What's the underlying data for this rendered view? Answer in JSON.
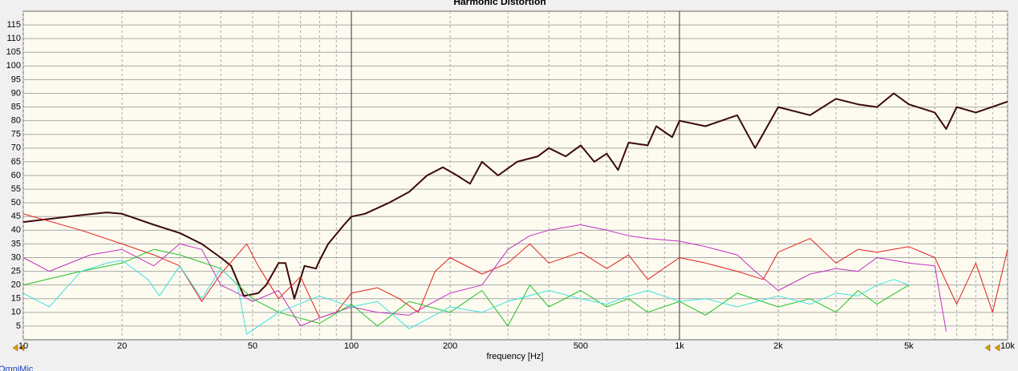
{
  "chart_data": {
    "type": "line",
    "title": "Harmonic Distortion",
    "xlabel": "frequency [Hz]",
    "footer": "OmniMic",
    "xscale": "log",
    "xlim": [
      10,
      10000
    ],
    "ylim": [
      0,
      120
    ],
    "xticks": [
      10,
      20,
      50,
      100,
      200,
      500,
      {
        "value": 1000,
        "label": "1k"
      },
      {
        "value": 2000,
        "label": "2k"
      },
      {
        "value": 5000,
        "label": "5k"
      },
      {
        "value": 10000,
        "label": "10k"
      }
    ],
    "xminor_ticks": [
      30,
      40,
      60,
      70,
      80,
      90,
      300,
      400,
      600,
      700,
      800,
      900,
      3000,
      4000,
      6000,
      7000,
      8000,
      9000
    ],
    "xmajor_lines": [
      100,
      1000
    ],
    "yticks": [
      5,
      10,
      15,
      20,
      25,
      30,
      35,
      40,
      45,
      50,
      55,
      60,
      65,
      70,
      75,
      80,
      85,
      90,
      95,
      100,
      105,
      110,
      115
    ],
    "grid": true,
    "series": [
      {
        "color": "#3c0a0a",
        "width": 2,
        "x": [
          10,
          15,
          18,
          20,
          25,
          30,
          35,
          40,
          43,
          47,
          52,
          55,
          60,
          63,
          67,
          72,
          78,
          80,
          85,
          95,
          100,
          110,
          130,
          150,
          170,
          190,
          210,
          230,
          250,
          280,
          320,
          370,
          400,
          450,
          500,
          550,
          600,
          650,
          700,
          800,
          850,
          950,
          1000,
          1200,
          1500,
          1700,
          2000,
          2500,
          3000,
          3500,
          4000,
          4500,
          5000,
          6000,
          6500,
          7000,
          8000,
          10000
        ],
        "values": [
          43,
          45.5,
          46.5,
          46,
          42,
          39,
          35,
          30,
          27,
          16,
          17,
          20,
          28,
          28,
          15,
          27,
          26,
          29,
          35,
          42,
          45,
          46,
          50,
          54,
          60,
          63,
          60,
          57,
          65,
          60,
          65,
          67,
          70,
          67,
          71,
          65,
          68,
          62,
          72,
          71,
          78,
          74,
          80,
          78,
          82,
          70,
          85,
          82,
          88,
          86,
          85,
          90,
          86,
          83,
          77,
          85,
          83,
          87
        ]
      },
      {
        "color": "#e0201b",
        "width": 1,
        "x": [
          10,
          15,
          20,
          25,
          30,
          35,
          40,
          48,
          52,
          60,
          70,
          80,
          90,
          100,
          120,
          140,
          160,
          180,
          200,
          250,
          300,
          350,
          400,
          500,
          600,
          700,
          800,
          1000,
          1200,
          1500,
          1800,
          2000,
          2500,
          3000,
          3500,
          4000,
          5000,
          6000,
          7000,
          8000,
          9000,
          10000
        ],
        "values": [
          46,
          40,
          35,
          31,
          27,
          14,
          24,
          35,
          27,
          15,
          23,
          8,
          10,
          17,
          19,
          15,
          10,
          25,
          30,
          24,
          28,
          35,
          28,
          32,
          26,
          31,
          22,
          30,
          28,
          25,
          22,
          32,
          37,
          28,
          33,
          32,
          34,
          30,
          13,
          28,
          10,
          33
        ]
      },
      {
        "color": "#c030c0",
        "width": 1,
        "x": [
          10,
          12,
          16,
          20,
          25,
          30,
          35,
          40,
          45,
          50,
          60,
          70,
          80,
          100,
          120,
          150,
          200,
          250,
          300,
          350,
          400,
          500,
          600,
          700,
          800,
          1000,
          1200,
          1500,
          1700,
          2000,
          2500,
          3000,
          3500,
          4000,
          5000,
          6000,
          6500
        ],
        "values": [
          30,
          25,
          31,
          33,
          27,
          35,
          33,
          20,
          17,
          14,
          18,
          5,
          8,
          12,
          10,
          9,
          17,
          20,
          33,
          38,
          40,
          42,
          40,
          38,
          37,
          36,
          34,
          31,
          25,
          18,
          24,
          26,
          25,
          30,
          28,
          27,
          3
        ]
      },
      {
        "color": "#20c020",
        "width": 1,
        "x": [
          10,
          15,
          20,
          25,
          30,
          40,
          50,
          60,
          80,
          100,
          120,
          150,
          200,
          250,
          300,
          350,
          400,
          500,
          600,
          700,
          800,
          1000,
          1200,
          1500,
          2000,
          2500,
          3000,
          3500,
          4000,
          5000
        ],
        "values": [
          20,
          25,
          28,
          33,
          31,
          26,
          15,
          10,
          6,
          13,
          5,
          14,
          10,
          18,
          5,
          20,
          12,
          18,
          12,
          15,
          10,
          14,
          9,
          17,
          12,
          15,
          10,
          18,
          13,
          20
        ]
      },
      {
        "color": "#40e0e0",
        "width": 1,
        "x": [
          10,
          12,
          15,
          18,
          20,
          24,
          26,
          30,
          35,
          40,
          45,
          48,
          60,
          80,
          100,
          120,
          150,
          200,
          250,
          300,
          400,
          500,
          600,
          700,
          800,
          1000,
          1200,
          1500,
          2000,
          2500,
          3000,
          3500,
          4000,
          4500,
          5000
        ],
        "values": [
          17,
          12,
          25,
          28,
          29,
          22,
          16,
          27,
          15,
          26,
          20,
          2,
          10,
          16,
          12,
          14,
          4,
          12,
          10,
          14,
          18,
          15,
          13,
          16,
          18,
          14,
          15,
          12,
          16,
          13,
          17,
          16,
          20,
          22,
          20
        ]
      }
    ]
  }
}
